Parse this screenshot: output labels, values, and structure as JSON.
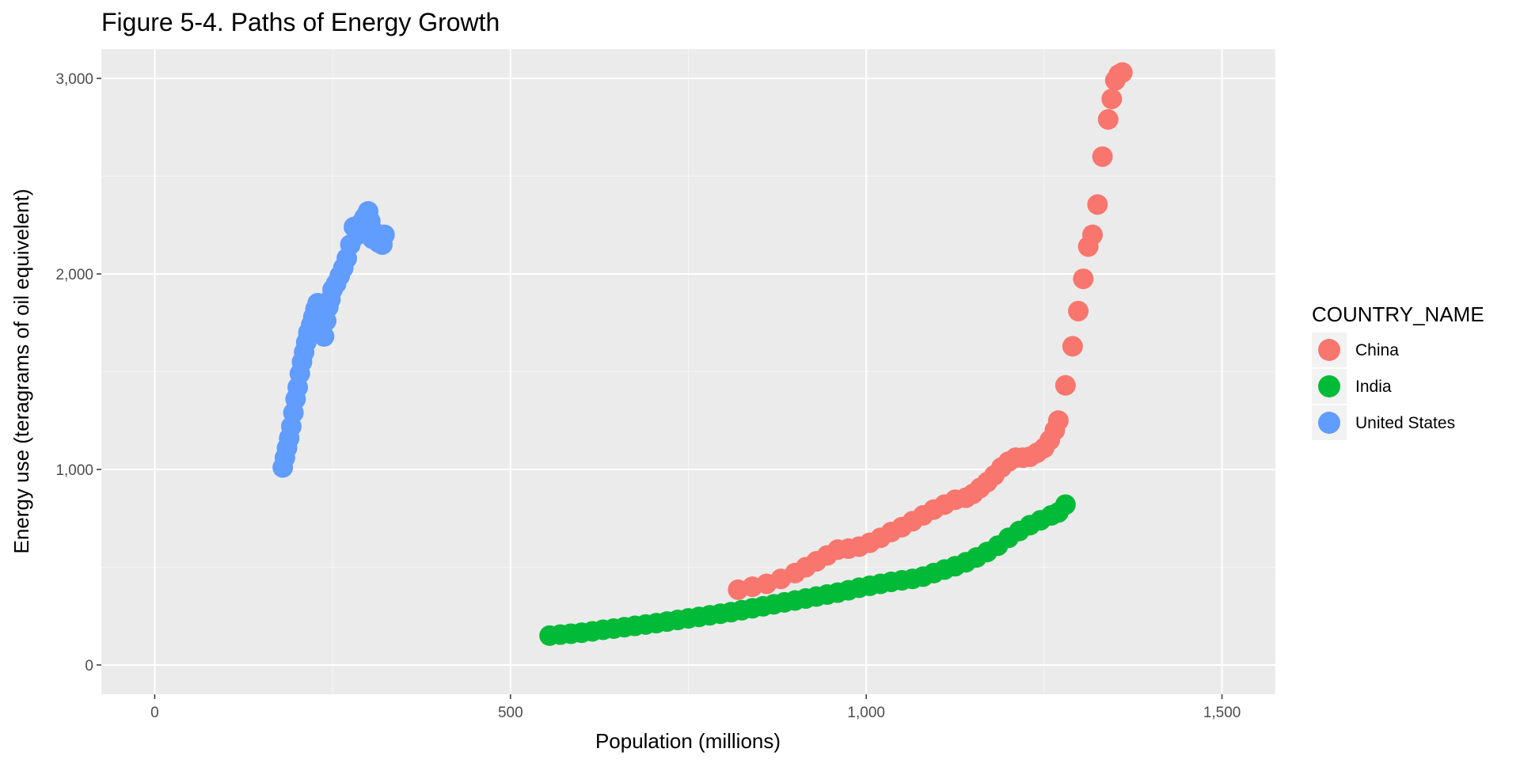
{
  "chart_data": {
    "type": "scatter",
    "title": "Figure 5-4. Paths of Energy Growth",
    "xlabel": "Population (millions)",
    "ylabel": "Energy use (teragrams of oil equivelent)",
    "xlim": [
      -75,
      1575
    ],
    "ylim": [
      -150,
      3150
    ],
    "x_ticks": [
      0,
      500,
      1000,
      1500
    ],
    "x_tick_labels": [
      "0",
      "500",
      "1,000",
      "1,500"
    ],
    "y_ticks": [
      0,
      1000,
      2000,
      3000
    ],
    "y_tick_labels": [
      "0",
      "1,000",
      "2,000",
      "3,000"
    ],
    "grid": true,
    "legend": {
      "title": "COUNTRY_NAME",
      "position": "right"
    },
    "series": [
      {
        "name": "China",
        "color": "#F8766D",
        "points": [
          [
            820,
            385
          ],
          [
            840,
            400
          ],
          [
            860,
            415
          ],
          [
            880,
            440
          ],
          [
            900,
            470
          ],
          [
            915,
            500
          ],
          [
            930,
            530
          ],
          [
            945,
            560
          ],
          [
            960,
            590
          ],
          [
            975,
            595
          ],
          [
            990,
            605
          ],
          [
            1005,
            625
          ],
          [
            1020,
            650
          ],
          [
            1035,
            680
          ],
          [
            1050,
            705
          ],
          [
            1065,
            735
          ],
          [
            1080,
            765
          ],
          [
            1095,
            795
          ],
          [
            1110,
            820
          ],
          [
            1125,
            845
          ],
          [
            1140,
            855
          ],
          [
            1150,
            875
          ],
          [
            1160,
            905
          ],
          [
            1170,
            935
          ],
          [
            1180,
            970
          ],
          [
            1190,
            1010
          ],
          [
            1200,
            1040
          ],
          [
            1210,
            1060
          ],
          [
            1220,
            1060
          ],
          [
            1230,
            1065
          ],
          [
            1240,
            1085
          ],
          [
            1250,
            1110
          ],
          [
            1258,
            1150
          ],
          [
            1265,
            1200
          ],
          [
            1270,
            1250
          ],
          [
            1280,
            1430
          ],
          [
            1290,
            1630
          ],
          [
            1298,
            1810
          ],
          [
            1305,
            1975
          ],
          [
            1312,
            2140
          ],
          [
            1318,
            2200
          ],
          [
            1325,
            2355
          ],
          [
            1332,
            2600
          ],
          [
            1340,
            2790
          ],
          [
            1345,
            2895
          ],
          [
            1350,
            2990
          ],
          [
            1355,
            3020
          ],
          [
            1360,
            3030
          ]
        ]
      },
      {
        "name": "India",
        "color": "#00BA38",
        "points": [
          [
            555,
            150
          ],
          [
            570,
            155
          ],
          [
            585,
            160
          ],
          [
            600,
            165
          ],
          [
            615,
            172
          ],
          [
            630,
            180
          ],
          [
            645,
            186
          ],
          [
            660,
            193
          ],
          [
            675,
            200
          ],
          [
            690,
            207
          ],
          [
            705,
            214
          ],
          [
            720,
            222
          ],
          [
            735,
            230
          ],
          [
            750,
            238
          ],
          [
            765,
            246
          ],
          [
            780,
            254
          ],
          [
            795,
            262
          ],
          [
            810,
            270
          ],
          [
            825,
            280
          ],
          [
            840,
            290
          ],
          [
            855,
            300
          ],
          [
            870,
            310
          ],
          [
            885,
            320
          ],
          [
            900,
            330
          ],
          [
            915,
            340
          ],
          [
            930,
            350
          ],
          [
            945,
            360
          ],
          [
            960,
            370
          ],
          [
            975,
            382
          ],
          [
            990,
            395
          ],
          [
            1005,
            405
          ],
          [
            1020,
            415
          ],
          [
            1035,
            425
          ],
          [
            1050,
            433
          ],
          [
            1065,
            440
          ],
          [
            1080,
            452
          ],
          [
            1095,
            470
          ],
          [
            1110,
            488
          ],
          [
            1125,
            505
          ],
          [
            1140,
            525
          ],
          [
            1155,
            550
          ],
          [
            1170,
            578
          ],
          [
            1185,
            610
          ],
          [
            1200,
            650
          ],
          [
            1215,
            685
          ],
          [
            1230,
            715
          ],
          [
            1245,
            740
          ],
          [
            1260,
            765
          ],
          [
            1270,
            780
          ],
          [
            1280,
            820
          ]
        ]
      },
      {
        "name": "United States",
        "color": "#619CFF",
        "points": [
          [
            180,
            1010
          ],
          [
            183,
            1060
          ],
          [
            186,
            1110
          ],
          [
            189,
            1160
          ],
          [
            192,
            1220
          ],
          [
            195,
            1290
          ],
          [
            198,
            1360
          ],
          [
            201,
            1420
          ],
          [
            204,
            1490
          ],
          [
            207,
            1550
          ],
          [
            210,
            1600
          ],
          [
            213,
            1650
          ],
          [
            216,
            1700
          ],
          [
            220,
            1740
          ],
          [
            223,
            1780
          ],
          [
            226,
            1820
          ],
          [
            229,
            1850
          ],
          [
            232,
            1800
          ],
          [
            235,
            1720
          ],
          [
            238,
            1680
          ],
          [
            241,
            1760
          ],
          [
            244,
            1830
          ],
          [
            247,
            1870
          ],
          [
            250,
            1920
          ],
          [
            255,
            1950
          ],
          [
            260,
            1990
          ],
          [
            265,
            2030
          ],
          [
            270,
            2080
          ],
          [
            275,
            2150
          ],
          [
            280,
            2240
          ],
          [
            285,
            2200
          ],
          [
            290,
            2260
          ],
          [
            295,
            2290
          ],
          [
            300,
            2320
          ],
          [
            303,
            2270
          ],
          [
            306,
            2180
          ],
          [
            310,
            2210
          ],
          [
            315,
            2160
          ],
          [
            320,
            2150
          ],
          [
            323,
            2200
          ]
        ]
      }
    ]
  }
}
